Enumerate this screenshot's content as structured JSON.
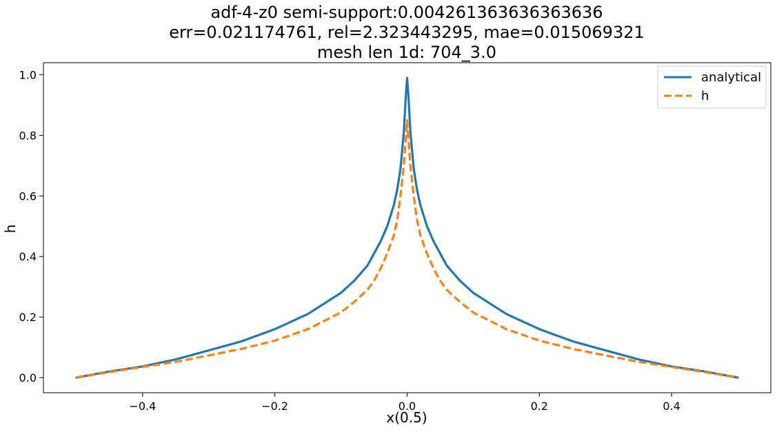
{
  "chart_data": {
    "type": "line",
    "title_lines": [
      "adf-4-z0  semi-support:0.004261363636363636",
      "err=0.021174761, rel=2.323443295, mae=0.015069321",
      "mesh len 1d: 704_3.0"
    ],
    "xlabel": "x(0.5)",
    "ylabel": "h",
    "xlim": [
      -0.55,
      0.55
    ],
    "ylim": [
      -0.05,
      1.04
    ],
    "xticks": [
      -0.4,
      -0.2,
      0.0,
      0.2,
      0.4
    ],
    "xtick_labels": [
      "−0.4",
      "−0.2",
      "0.0",
      "0.2",
      "0.4"
    ],
    "yticks": [
      0.0,
      0.2,
      0.4,
      0.6,
      0.8,
      1.0
    ],
    "ytick_labels": [
      "0.0",
      "0.2",
      "0.4",
      "0.6",
      "0.8",
      "1.0"
    ],
    "grid": false,
    "legend_position": "top-right",
    "series": [
      {
        "name": "analytical",
        "color": "#1f77b4",
        "dash": "solid",
        "x": [
          -0.5,
          -0.45,
          -0.4,
          -0.35,
          -0.3,
          -0.25,
          -0.2,
          -0.15,
          -0.1,
          -0.08,
          -0.06,
          -0.05,
          -0.04,
          -0.03,
          -0.02,
          -0.015,
          -0.01,
          -0.005,
          -0.002,
          0.0,
          0.002,
          0.005,
          0.01,
          0.015,
          0.02,
          0.03,
          0.04,
          0.05,
          0.06,
          0.08,
          0.1,
          0.15,
          0.2,
          0.25,
          0.3,
          0.35,
          0.4,
          0.45,
          0.5
        ],
        "y": [
          0.0,
          0.02,
          0.037,
          0.06,
          0.09,
          0.12,
          0.16,
          0.21,
          0.28,
          0.32,
          0.37,
          0.41,
          0.45,
          0.5,
          0.57,
          0.62,
          0.69,
          0.81,
          0.93,
          0.99,
          0.93,
          0.81,
          0.69,
          0.62,
          0.57,
          0.5,
          0.45,
          0.41,
          0.37,
          0.32,
          0.28,
          0.21,
          0.16,
          0.12,
          0.09,
          0.06,
          0.037,
          0.02,
          0.0
        ]
      },
      {
        "name": "h",
        "color": "#ff7f0e",
        "dash": "dashed",
        "x": [
          -0.5,
          -0.45,
          -0.4,
          -0.35,
          -0.3,
          -0.25,
          -0.2,
          -0.15,
          -0.1,
          -0.08,
          -0.06,
          -0.05,
          -0.04,
          -0.03,
          -0.02,
          -0.015,
          -0.01,
          -0.005,
          -0.002,
          0.0,
          0.002,
          0.005,
          0.01,
          0.015,
          0.02,
          0.03,
          0.04,
          0.05,
          0.06,
          0.08,
          0.1,
          0.15,
          0.2,
          0.25,
          0.3,
          0.35,
          0.4,
          0.45,
          0.5
        ],
        "y": [
          0.0,
          0.018,
          0.035,
          0.052,
          0.073,
          0.095,
          0.122,
          0.16,
          0.215,
          0.25,
          0.29,
          0.32,
          0.36,
          0.41,
          0.47,
          0.52,
          0.6,
          0.7,
          0.79,
          0.85,
          0.79,
          0.7,
          0.6,
          0.52,
          0.47,
          0.41,
          0.36,
          0.32,
          0.29,
          0.25,
          0.215,
          0.16,
          0.122,
          0.095,
          0.073,
          0.052,
          0.035,
          0.018,
          0.0
        ]
      }
    ]
  }
}
